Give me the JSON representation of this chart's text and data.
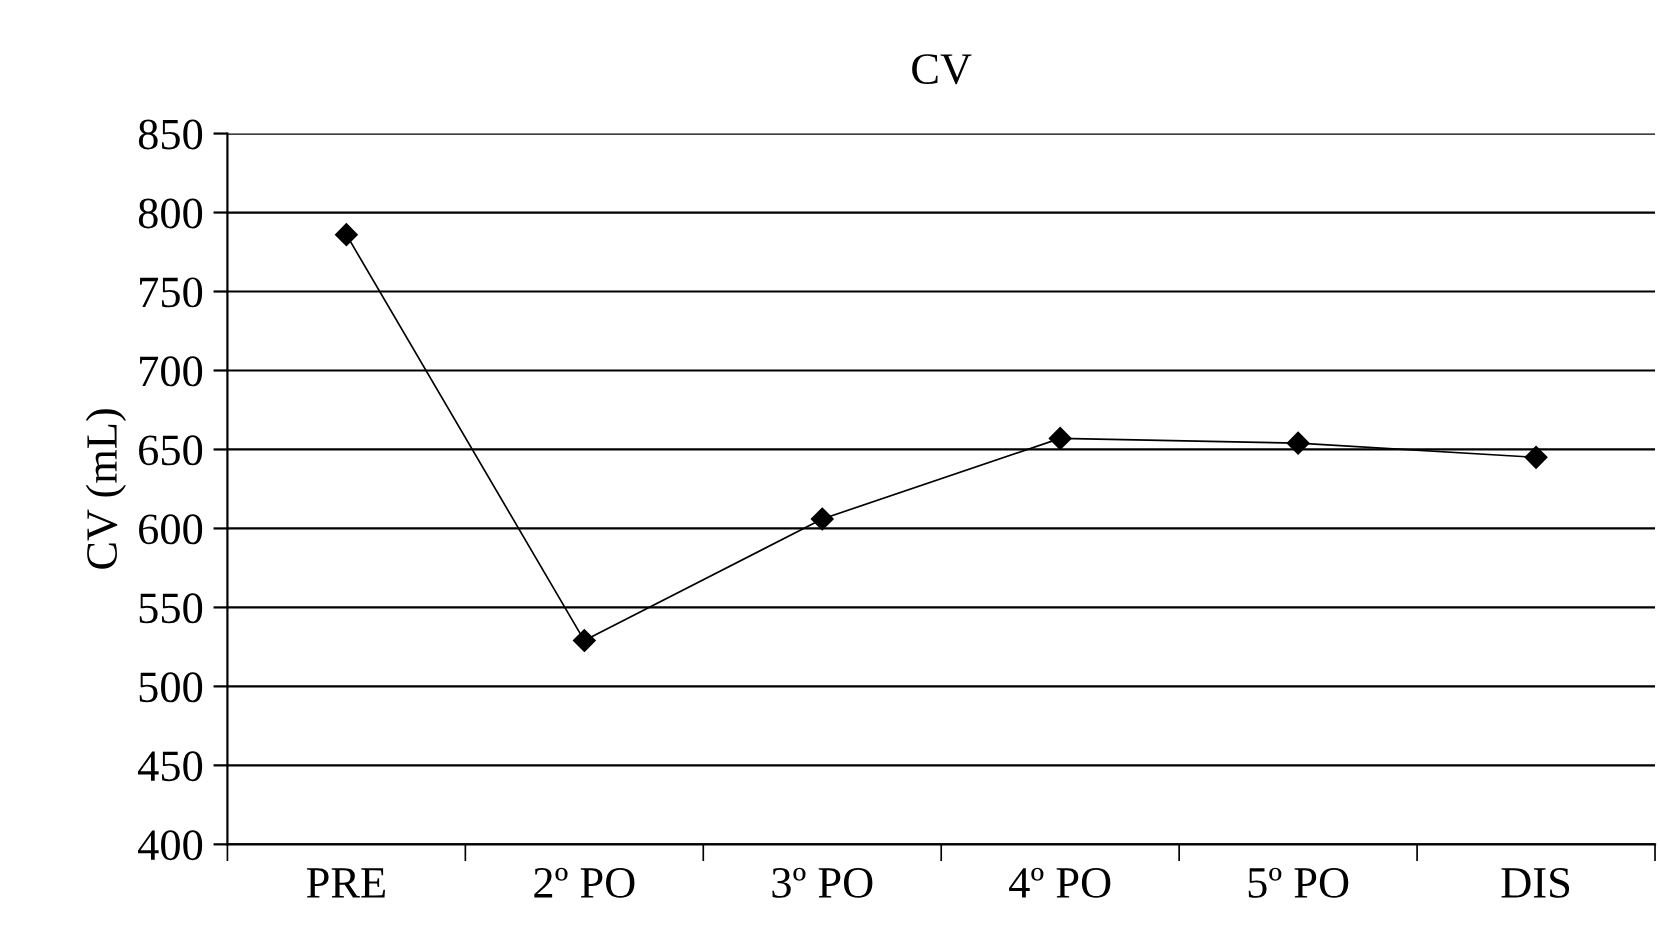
{
  "chart_data": {
    "type": "line",
    "title": "CV",
    "ylabel": "CV (mL)",
    "categories": [
      "PRE",
      "2º PO",
      "3º PO",
      "4º PO",
      "5º PO",
      "DIS"
    ],
    "series": [
      {
        "color": "#000000",
        "values": [
          786,
          529,
          606,
          657,
          654,
          645
        ]
      }
    ],
    "ylim": [
      400,
      850
    ],
    "yticks": [
      400,
      450,
      500,
      550,
      600,
      650,
      700,
      750,
      800,
      850
    ],
    "grid": "y",
    "marker": "diamond",
    "line_style": "solid"
  }
}
